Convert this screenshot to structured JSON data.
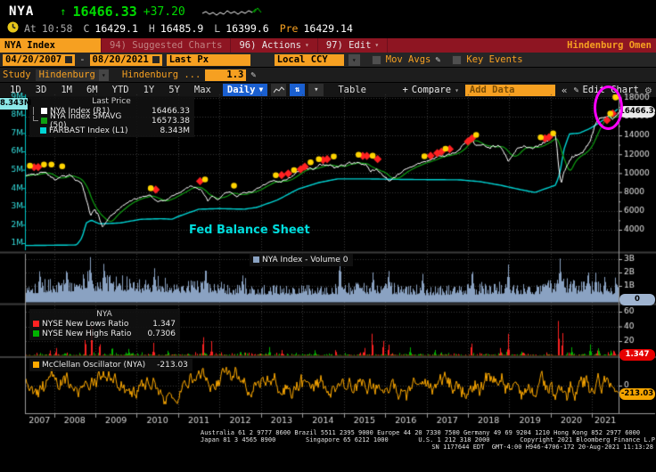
{
  "header": {
    "ticker": "NYA",
    "arrow": "↑",
    "last": "16466.33",
    "change": "+37.20",
    "at_label": "At",
    "time": "10:58",
    "stats": [
      {
        "label": "C",
        "value": "16429.1"
      },
      {
        "label": "H",
        "value": "16485.9"
      },
      {
        "label": "L",
        "value": "16399.6"
      },
      {
        "label": "Pre",
        "value": "16429.14"
      }
    ]
  },
  "titlebar": {
    "tab": "NYA Index",
    "suggested": "94) Suggested Charts",
    "actions": "96) Actions",
    "edit": "97) Edit",
    "title": "Hindenburg Omen"
  },
  "toolbar1": {
    "date_from": "04/20/2007",
    "dash": "-",
    "date_to": "08/20/2021",
    "price_field": "Last Px",
    "currency": "Local CCY",
    "mov_avgs": "Mov Avgs",
    "key_events": "Key Events"
  },
  "toolbar2": {
    "study_label": "Study",
    "study_value": "Hindenburg",
    "study_name": "Hindenburg ...",
    "study_param": "1.3"
  },
  "toolbar3": {
    "ranges": [
      "1D",
      "3D",
      "1M",
      "6M",
      "YTD",
      "1Y",
      "5Y",
      "Max"
    ],
    "frequency": "Daily",
    "table": "Table",
    "compare": "Compare",
    "add_data": "Add Data",
    "edit_chart": "Edit Chart"
  },
  "icons": {
    "caret_down": "▾",
    "dropdown_down": "▼",
    "plus": "+",
    "pencil": "✎",
    "gear": "⚙",
    "collapse": "«",
    "updown": "⇅"
  },
  "colors": {
    "up_green": "#00d900",
    "accent_amber": "#f6a021",
    "titlebar_red": "#8e1522",
    "magenta_annotation": "#ff00ff",
    "signal_red": "#ff2222",
    "signal_yellow": "#ffd400"
  },
  "chart_data": [
    {
      "type": "line",
      "title": "NYA Index price panel with Hindenburg Omen signals",
      "x_range": [
        2007.3,
        2021.64
      ],
      "x_year_labels": [
        "2007",
        "2008",
        "2009",
        "2010",
        "2011",
        "2012",
        "2013",
        "2014",
        "2015",
        "2016",
        "2017",
        "2018",
        "2019",
        "2020",
        "2021"
      ],
      "right_axis": {
        "ticks": [
          18000,
          16000,
          14000,
          12000,
          10000,
          8000,
          6000,
          4000
        ],
        "badge": "16466.33"
      },
      "left_axis": {
        "ticks": [
          [
            "9M",
            9
          ],
          [
            "8M",
            8
          ],
          [
            "7M",
            7
          ],
          [
            "6M",
            6
          ],
          [
            "5M",
            5
          ],
          [
            "4M",
            4
          ],
          [
            "3M",
            3
          ],
          [
            "2M",
            2
          ],
          [
            "1M",
            1
          ]
        ],
        "badge": "8.343M"
      },
      "legend": {
        "header": "Last Price",
        "items": [
          {
            "label": "NYA Index  (R1)",
            "value": "16466.33"
          },
          {
            "label": "NYA Index SMAVG (50)",
            "value": "16573.38"
          },
          {
            "label": "FARBAST Index  (L1)",
            "value": "8.343M"
          }
        ]
      },
      "annotation": "Fed Balance Sheet",
      "series": [
        {
          "name": "NYA Index",
          "axis": "right",
          "color": "#ffffff",
          "anchors": [
            [
              2007.3,
              9700
            ],
            [
              2007.55,
              10050
            ],
            [
              2007.78,
              10300
            ],
            [
              2007.9,
              9850
            ],
            [
              2008.05,
              9250
            ],
            [
              2008.2,
              9500
            ],
            [
              2008.38,
              9650
            ],
            [
              2008.55,
              9200
            ],
            [
              2008.68,
              8700
            ],
            [
              2008.8,
              7300
            ],
            [
              2008.88,
              5700
            ],
            [
              2008.98,
              6050
            ],
            [
              2009.06,
              5600
            ],
            [
              2009.17,
              4300
            ],
            [
              2009.35,
              5300
            ],
            [
              2009.6,
              6300
            ],
            [
              2009.8,
              6900
            ],
            [
              2010.05,
              7250
            ],
            [
              2010.3,
              7750
            ],
            [
              2010.5,
              6950
            ],
            [
              2010.65,
              7100
            ],
            [
              2010.9,
              7600
            ],
            [
              2011.1,
              8150
            ],
            [
              2011.32,
              8550
            ],
            [
              2011.55,
              8300
            ],
            [
              2011.72,
              6950
            ],
            [
              2011.82,
              7400
            ],
            [
              2011.95,
              7250
            ],
            [
              2012.2,
              8150
            ],
            [
              2012.42,
              7700
            ],
            [
              2012.65,
              7950
            ],
            [
              2012.95,
              8350
            ],
            [
              2013.2,
              8900
            ],
            [
              2013.45,
              9150
            ],
            [
              2013.65,
              9550
            ],
            [
              2014.0,
              10350
            ],
            [
              2014.25,
              10500
            ],
            [
              2014.5,
              10950
            ],
            [
              2014.78,
              10550
            ],
            [
              2015.0,
              10900
            ],
            [
              2015.35,
              11200
            ],
            [
              2015.55,
              10800
            ],
            [
              2015.65,
              10150
            ],
            [
              2015.8,
              10450
            ],
            [
              2015.95,
              9900
            ],
            [
              2016.1,
              9350
            ],
            [
              2016.35,
              10150
            ],
            [
              2016.6,
              10550
            ],
            [
              2016.85,
              10900
            ],
            [
              2017.1,
              11450
            ],
            [
              2017.4,
              11750
            ],
            [
              2017.7,
              12150
            ],
            [
              2017.95,
              13250
            ],
            [
              2018.07,
              13600
            ],
            [
              2018.18,
              12650
            ],
            [
              2018.35,
              12900
            ],
            [
              2018.55,
              13050
            ],
            [
              2018.72,
              13200
            ],
            [
              2018.85,
              12350
            ],
            [
              2018.98,
              11150
            ],
            [
              2019.15,
              12200
            ],
            [
              2019.35,
              12750
            ],
            [
              2019.55,
              12900
            ],
            [
              2019.75,
              13150
            ],
            [
              2019.98,
              13900
            ],
            [
              2020.12,
              14150
            ],
            [
              2020.2,
              10500
            ],
            [
              2020.25,
              8750
            ],
            [
              2020.38,
              10700
            ],
            [
              2020.5,
              11600
            ],
            [
              2020.65,
              12050
            ],
            [
              2020.78,
              12300
            ],
            [
              2020.95,
              13400
            ],
            [
              2021.1,
              15200
            ],
            [
              2021.25,
              15900
            ],
            [
              2021.4,
              16200
            ],
            [
              2021.5,
              15950
            ],
            [
              2021.64,
              16466
            ]
          ]
        },
        {
          "name": "NYA Index SMAVG (50)",
          "axis": "right",
          "color": "#0fa012",
          "derived": "sma"
        },
        {
          "name": "FARBAST Index",
          "axis": "left",
          "color": "#00d4d4",
          "anchors": [
            [
              2007.3,
              0.87
            ],
            [
              2008.55,
              0.9
            ],
            [
              2008.68,
              1.3
            ],
            [
              2008.78,
              2.1
            ],
            [
              2008.9,
              2.25
            ],
            [
              2009.1,
              2.05
            ],
            [
              2009.6,
              2.1
            ],
            [
              2010.1,
              2.3
            ],
            [
              2010.6,
              2.33
            ],
            [
              2010.85,
              2.3
            ],
            [
              2011.0,
              2.45
            ],
            [
              2011.5,
              2.85
            ],
            [
              2012.0,
              2.88
            ],
            [
              2012.6,
              2.85
            ],
            [
              2012.9,
              2.95
            ],
            [
              2013.4,
              3.35
            ],
            [
              2013.9,
              3.95
            ],
            [
              2014.4,
              4.3
            ],
            [
              2014.85,
              4.5
            ],
            [
              2015.6,
              4.5
            ],
            [
              2016.5,
              4.47
            ],
            [
              2017.8,
              4.45
            ],
            [
              2018.3,
              4.35
            ],
            [
              2018.8,
              4.15
            ],
            [
              2019.2,
              3.95
            ],
            [
              2019.62,
              3.76
            ],
            [
              2019.85,
              3.95
            ],
            [
              2020.12,
              4.16
            ],
            [
              2020.22,
              4.8
            ],
            [
              2020.32,
              6.1
            ],
            [
              2020.45,
              6.95
            ],
            [
              2020.7,
              7.0
            ],
            [
              2020.95,
              7.25
            ],
            [
              2021.2,
              7.6
            ],
            [
              2021.45,
              8.0
            ],
            [
              2021.64,
              8.343
            ]
          ]
        }
      ],
      "signals": {
        "red": [
          2007.52,
          2007.62,
          2010.46,
          2011.53,
          2013.5,
          2013.66,
          2013.96,
          2014.06,
          2014.5,
          2014.6,
          2015.46,
          2015.56,
          2015.82,
          2017.1,
          2017.26,
          2017.36,
          2017.56,
          2018.0,
          2018.1,
          2019.86,
          2019.96,
          2021.36,
          2021.5
        ],
        "yellow": [
          2007.42,
          2007.76,
          2007.94,
          2008.2,
          2010.34,
          2011.65,
          2012.35,
          2013.36,
          2013.8,
          2014.2,
          2014.4,
          2014.76,
          2015.36,
          2015.7,
          2016.95,
          2017.46,
          2018.2,
          2019.76,
          2020.06,
          2021.44
        ],
        "circled": {
          "x": 2021.57,
          "value": 18050
        }
      }
    },
    {
      "type": "bar",
      "title": "Volume panel",
      "legend_label": "NYA Index - Volume",
      "legend_value": "0",
      "color": "#8aa2c2",
      "right_axis": {
        "ticks": [
          [
            "3B",
            3
          ],
          [
            "2B",
            2
          ],
          [
            "1B",
            1
          ]
        ],
        "badge": "0"
      },
      "grid": [
        1,
        2,
        3
      ],
      "anchors": [
        [
          2007.3,
          1.25
        ],
        [
          2008.0,
          1.35
        ],
        [
          2008.8,
          1.8
        ],
        [
          2009.3,
          1.7
        ],
        [
          2010.0,
          1.35
        ],
        [
          2010.5,
          1.5
        ],
        [
          2011.0,
          1.25
        ],
        [
          2011.7,
          1.45
        ],
        [
          2012.3,
          1.0
        ],
        [
          2013.0,
          0.95
        ],
        [
          2014.0,
          0.9
        ],
        [
          2015.0,
          1.0
        ],
        [
          2015.8,
          1.1
        ],
        [
          2016.3,
          1.05
        ],
        [
          2017.0,
          0.85
        ],
        [
          2018.0,
          0.95
        ],
        [
          2018.95,
          1.15
        ],
        [
          2019.5,
          0.9
        ],
        [
          2020.2,
          1.6
        ],
        [
          2020.6,
          1.2
        ],
        [
          2021.0,
          1.15
        ],
        [
          2021.64,
          1.0
        ]
      ],
      "spikes": [
        [
          2007.65,
          2.3
        ],
        [
          2008.3,
          2.5
        ],
        [
          2008.87,
          3.25
        ],
        [
          2009.2,
          2.9
        ],
        [
          2010.42,
          2.4
        ],
        [
          2011.66,
          2.6
        ],
        [
          2012.55,
          1.9
        ],
        [
          2014.9,
          3.3
        ],
        [
          2015.7,
          2.1
        ],
        [
          2016.08,
          2.3
        ],
        [
          2016.9,
          2.0
        ],
        [
          2018.1,
          2.4
        ],
        [
          2018.97,
          2.6
        ],
        [
          2020.22,
          3.1
        ],
        [
          2020.9,
          2.3
        ],
        [
          2021.08,
          2.0
        ],
        [
          2021.3,
          1.8
        ]
      ]
    },
    {
      "type": "bar",
      "title": "NYSE new highs / new lows panel",
      "legend_header": "NYA",
      "items": [
        {
          "label": "NYSE New Lows Ratio",
          "value": "1.347",
          "color": "#ff2222"
        },
        {
          "label": "NYSE New Highs Ratio",
          "value": "0.7306",
          "color": "#00b400"
        }
      ],
      "right_axis": {
        "ticks": [
          [
            "60",
            60
          ],
          [
            "40",
            40
          ],
          [
            "20",
            20
          ]
        ],
        "badge": "1.347"
      },
      "grid": [
        20,
        40,
        60
      ],
      "red_spikes": [
        [
          2007.9,
          8
        ],
        [
          2008.05,
          12
        ],
        [
          2008.75,
          30
        ],
        [
          2008.9,
          55
        ],
        [
          2009.1,
          22
        ],
        [
          2010.4,
          18
        ],
        [
          2011.6,
          32
        ],
        [
          2011.8,
          20
        ],
        [
          2013.5,
          8
        ],
        [
          2014.8,
          10
        ],
        [
          2015.5,
          12
        ],
        [
          2015.68,
          35
        ],
        [
          2015.95,
          25
        ],
        [
          2016.08,
          18
        ],
        [
          2018.08,
          22
        ],
        [
          2018.78,
          12
        ],
        [
          2018.97,
          30
        ],
        [
          2020.18,
          55
        ],
        [
          2020.28,
          35
        ],
        [
          2021.12,
          8
        ],
        [
          2021.52,
          10
        ]
      ],
      "green_spikes": [
        [
          2009.4,
          14
        ],
        [
          2009.8,
          10
        ],
        [
          2010.75,
          8
        ],
        [
          2012.5,
          7
        ],
        [
          2013.2,
          12
        ],
        [
          2014.3,
          8
        ],
        [
          2016.6,
          12
        ],
        [
          2017.2,
          9
        ],
        [
          2019.3,
          7
        ],
        [
          2020.5,
          12
        ],
        [
          2020.95,
          16
        ],
        [
          2021.15,
          12
        ],
        [
          2021.45,
          8
        ]
      ]
    },
    {
      "type": "line",
      "title": "McClellan Oscillator panel",
      "legend_label": "McClellan Oscillator (NYA)",
      "legend_value": "-213.03",
      "color": "#ffaa00",
      "right_axis": {
        "ticks": [
          [
            "0",
            0
          ]
        ],
        "badge": "-213.03"
      },
      "grid": [
        0
      ],
      "last_value": -213.03
    }
  ],
  "footer": {
    "line1": "Australia 61 2 9777 8600 Brazil 5511 2395 9000 Europe 44 20 7330 7500 Germany 49 69 9204 1210 Hong Kong 852 2977 6000",
    "line2": "Japan 81 3 4565 8900        Singapore 65 6212 1000        U.S. 1 212 318 2000        Copyright 2021 Bloomberg Finance L.P.",
    "line3": "SN 1177644 EDT  GMT-4:00 H946-4706-172 20-Aug-2021 11:13:28"
  }
}
